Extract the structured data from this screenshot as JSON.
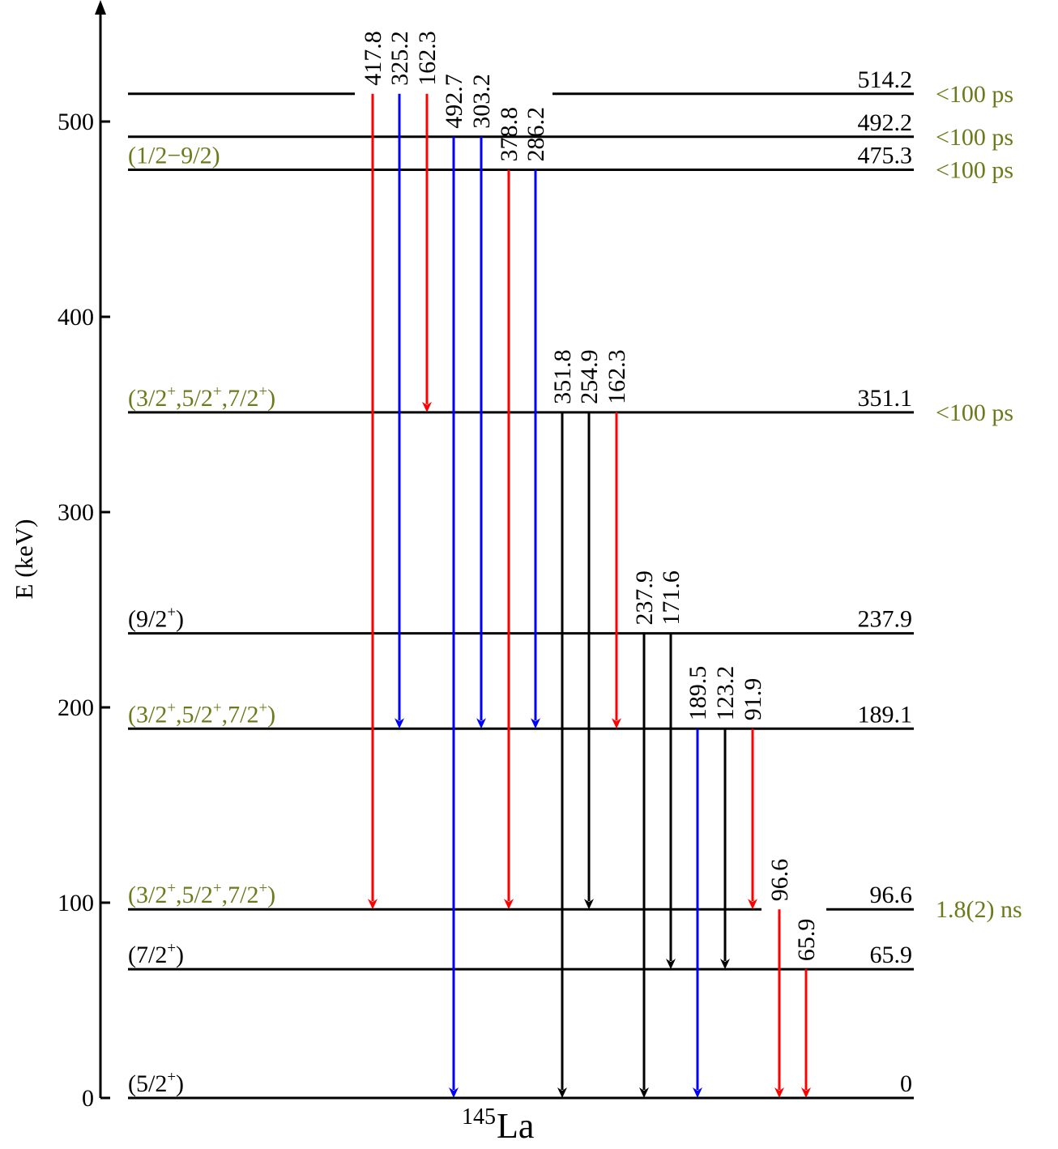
{
  "colors": {
    "olive": "#6b7a1a",
    "black": "#000000",
    "red": "#ff0000",
    "blue": "#0000ff"
  },
  "axis": {
    "ylabel": "E (keV)",
    "unit": "keV",
    "ylim": [
      0,
      540
    ],
    "ticks": [
      0,
      100,
      200,
      300,
      400,
      500
    ]
  },
  "nucleus": {
    "mass": "145",
    "symbol": "La"
  },
  "levels": [
    {
      "energy": 514.2,
      "label": "514.2",
      "spin": "",
      "spin_color": "black",
      "lifetime": "<100 ps"
    },
    {
      "energy": 492.2,
      "label": "492.2",
      "spin": "",
      "spin_color": "black",
      "lifetime": "<100 ps"
    },
    {
      "energy": 475.3,
      "label": "475.3",
      "spin": "(1/2−9/2)",
      "spin_color": "olive",
      "lifetime": "<100 ps"
    },
    {
      "energy": 351.1,
      "label": "351.1",
      "spin": "(3/2^+,5/2^+,7/2^+)",
      "spin_color": "olive",
      "lifetime": "<100 ps"
    },
    {
      "energy": 237.9,
      "label": "237.9",
      "spin": "(9/2^+)",
      "spin_color": "black",
      "lifetime": ""
    },
    {
      "energy": 189.1,
      "label": "189.1",
      "spin": "(3/2^+,5/2^+,7/2^+)",
      "spin_color": "olive",
      "lifetime": ""
    },
    {
      "energy": 96.6,
      "label": "96.6",
      "spin": "(3/2^+,5/2^+,7/2^+)",
      "spin_color": "olive",
      "lifetime": "1.8(2) ns"
    },
    {
      "energy": 65.9,
      "label": "65.9",
      "spin": "(7/2^+)",
      "spin_color": "black",
      "lifetime": ""
    },
    {
      "energy": 0,
      "label": "0",
      "spin": "(5/2^+)",
      "spin_color": "black",
      "lifetime": ""
    }
  ],
  "transitions": [
    {
      "label": "417.8",
      "from": 514.2,
      "to": 96.6,
      "color": "red"
    },
    {
      "label": "325.2",
      "from": 514.2,
      "to": 189.1,
      "color": "blue"
    },
    {
      "label": "162.3",
      "from": 514.2,
      "to": 351.1,
      "color": "red"
    },
    {
      "label": "492.7",
      "from": 492.2,
      "to": 0,
      "color": "blue"
    },
    {
      "label": "303.2",
      "from": 492.2,
      "to": 189.1,
      "color": "blue"
    },
    {
      "label": "378.8",
      "from": 475.3,
      "to": 96.6,
      "color": "red"
    },
    {
      "label": "286.2",
      "from": 475.3,
      "to": 189.1,
      "color": "blue"
    },
    {
      "label": "351.8",
      "from": 351.1,
      "to": 0,
      "color": "black"
    },
    {
      "label": "254.9",
      "from": 351.1,
      "to": 96.6,
      "color": "black"
    },
    {
      "label": "162.3",
      "from": 351.1,
      "to": 189.1,
      "color": "red"
    },
    {
      "label": "237.9",
      "from": 237.9,
      "to": 0,
      "color": "black"
    },
    {
      "label": "171.6",
      "from": 237.9,
      "to": 65.9,
      "color": "black"
    },
    {
      "label": "189.5",
      "from": 189.1,
      "to": 0,
      "color": "blue"
    },
    {
      "label": "123.2",
      "from": 189.1,
      "to": 65.9,
      "color": "black"
    },
    {
      "label": "91.9",
      "from": 189.1,
      "to": 96.6,
      "color": "red"
    },
    {
      "label": "96.6",
      "from": 96.6,
      "to": 0,
      "color": "red"
    },
    {
      "label": "65.9",
      "from": 65.9,
      "to": 0,
      "color": "red"
    }
  ]
}
